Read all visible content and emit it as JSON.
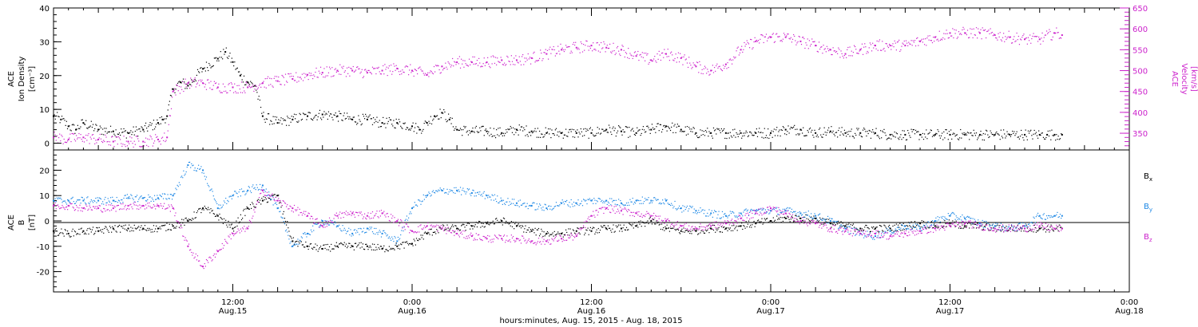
{
  "figure": {
    "xlabel": "hours:minutes, Aug. 15, 2015 - Aug. 18, 2015",
    "x_unit": "hours since 2015-08-15 00:00",
    "xlim": [
      0,
      72
    ],
    "xticks": [
      {
        "x": 12,
        "line1": "12:00",
        "line2": "Aug.15"
      },
      {
        "x": 24,
        "line1": "0:00",
        "line2": "Aug.16"
      },
      {
        "x": 36,
        "line1": "12:00",
        "line2": "Aug.16"
      },
      {
        "x": 48,
        "line1": "0:00",
        "line2": "Aug.17"
      },
      {
        "x": 60,
        "line1": "12:00",
        "line2": "Aug.17"
      },
      {
        "x": 72,
        "line1": "0:00",
        "line2": "Aug.18"
      }
    ]
  },
  "chart_data": [
    {
      "type": "scatter",
      "panel": "plasma",
      "left_axis": {
        "label_lines": [
          "ACE",
          "Ion Density",
          "[cm⁻³]"
        ],
        "ylim": [
          -2,
          40
        ],
        "ticks": [
          0,
          10,
          20,
          30,
          40
        ],
        "color": "#000000"
      },
      "right_axis": {
        "label_lines": [
          "ACE",
          "Velocity",
          "[km/s]"
        ],
        "ylim": [
          310,
          650
        ],
        "ticks": [
          350,
          400,
          450,
          500,
          550,
          600,
          650
        ],
        "color": "#cc22cc"
      },
      "series": [
        {
          "name": "Ion Density",
          "axis": "left",
          "color": "#000000",
          "x": [
            0,
            0.5,
            1,
            1.5,
            2,
            3,
            4,
            5,
            6,
            7,
            7.3,
            7.6,
            8,
            8.5,
            9,
            10,
            11,
            11.5,
            12,
            12.5,
            13,
            13.5,
            14,
            15,
            16,
            17,
            18,
            19,
            20,
            21,
            22,
            23,
            24,
            24.5,
            25,
            25.5,
            26,
            26.5,
            27,
            28,
            29,
            30,
            31,
            32,
            33,
            34,
            35,
            36,
            37,
            38,
            39,
            40,
            41,
            42,
            43,
            44,
            45,
            46,
            47,
            48,
            49,
            50,
            51,
            52,
            53,
            54,
            55,
            56,
            57,
            58,
            59,
            60,
            61,
            62,
            63,
            64,
            65,
            66,
            66.5,
            67,
            67.5
          ],
          "y": [
            8,
            7,
            5,
            4,
            6,
            4,
            3.5,
            3,
            4,
            6,
            7,
            8,
            16,
            18,
            17,
            22,
            25,
            27,
            24,
            20,
            18,
            17,
            8,
            6,
            7,
            8,
            8.5,
            8,
            7,
            7,
            6,
            6,
            5,
            4,
            6,
            8,
            9,
            7,
            4,
            3.5,
            3.5,
            3,
            4,
            3.5,
            3,
            3,
            3,
            3,
            4,
            3.5,
            3,
            4,
            5,
            4,
            3,
            3,
            3,
            3,
            3,
            3,
            4,
            4,
            3,
            3.5,
            3,
            3,
            3,
            2.5,
            2.5,
            2.5,
            2.5,
            2.5,
            2.5,
            2.5,
            2.5,
            2.5,
            2.5,
            2.5,
            2.5,
            2.5,
            2.5
          ]
        },
        {
          "name": "Velocity",
          "axis": "right",
          "color": "#cc22cc",
          "x": [
            0,
            1,
            2,
            3,
            4,
            5,
            6,
            7,
            7.6,
            8,
            9,
            10,
            11,
            12,
            13,
            14,
            15,
            16,
            17,
            18,
            19,
            20,
            21,
            22,
            23,
            24,
            25,
            26,
            27,
            28,
            29,
            30,
            31,
            32,
            33,
            34,
            35,
            36,
            37,
            38,
            39,
            40,
            41,
            42,
            43,
            44,
            45,
            46,
            47,
            48,
            49,
            50,
            51,
            52,
            53,
            54,
            55,
            56,
            57,
            58,
            59,
            60,
            61,
            62,
            63,
            64,
            65,
            66,
            67,
            67.5
          ],
          "y": [
            340,
            335,
            340,
            335,
            330,
            330,
            330,
            335,
            340,
            450,
            470,
            470,
            460,
            460,
            460,
            470,
            475,
            480,
            490,
            495,
            500,
            500,
            495,
            500,
            505,
            500,
            490,
            510,
            520,
            520,
            520,
            525,
            525,
            530,
            540,
            550,
            555,
            560,
            555,
            550,
            535,
            525,
            540,
            530,
            510,
            500,
            515,
            550,
            570,
            580,
            580,
            570,
            560,
            550,
            540,
            550,
            560,
            560,
            560,
            570,
            580,
            590,
            590,
            590,
            585,
            580,
            575,
            575,
            590,
            585
          ]
        }
      ]
    },
    {
      "type": "scatter",
      "panel": "magnetic",
      "left_axis": {
        "label_lines": [
          "ACE",
          "B",
          "[nT]"
        ],
        "ylim": [
          -28,
          28
        ],
        "ticks": [
          -20,
          -10,
          0,
          10,
          20
        ],
        "color": "#000000"
      },
      "zero_line": true,
      "legend_placement": "right",
      "legend": [
        {
          "base": "B",
          "sub": "x",
          "color": "#000000"
        },
        {
          "base": "B",
          "sub": "y",
          "color": "#1e88e5"
        },
        {
          "base": "B",
          "sub": "z",
          "color": "#cc22cc"
        }
      ],
      "series": [
        {
          "name": "Bx",
          "color": "#000000",
          "x": [
            0,
            1,
            2,
            3,
            4,
            5,
            6,
            7,
            8,
            9,
            10,
            11,
            12,
            13,
            14,
            15,
            16,
            17,
            18,
            19,
            20,
            21,
            22,
            23,
            24,
            25,
            26,
            27,
            28,
            29,
            30,
            31,
            32,
            33,
            34,
            35,
            36,
            37,
            38,
            39,
            40,
            41,
            42,
            43,
            44,
            45,
            46,
            47,
            48,
            49,
            50,
            51,
            52,
            53,
            54,
            55,
            56,
            57,
            58,
            59,
            60,
            61,
            62,
            63,
            64,
            65,
            66,
            67,
            67.5
          ],
          "y": [
            -4,
            -5,
            -4,
            -4,
            -3,
            -3,
            -3,
            -3,
            -2,
            0,
            5,
            2,
            -3,
            5,
            8,
            10,
            -8,
            -10,
            -11,
            -10,
            -10,
            -10,
            -11,
            -10,
            -9,
            -5,
            -3,
            -3,
            -2,
            -1,
            0,
            -2,
            -4,
            -5,
            -5,
            -4,
            -4,
            -3,
            -3,
            -2,
            0,
            -3,
            -4,
            -4,
            -3,
            -3,
            -2,
            -1,
            0,
            1,
            1,
            1,
            -1,
            -2,
            -3,
            -3,
            -3,
            -2,
            -1,
            -2,
            -1,
            -2,
            -2,
            -3,
            -3,
            -3,
            -3,
            -3,
            -3
          ]
        },
        {
          "name": "By",
          "color": "#1e88e5",
          "x": [
            0,
            1,
            2,
            3,
            4,
            5,
            6,
            7,
            8,
            9,
            10,
            11,
            12,
            13,
            14,
            15,
            16,
            17,
            18,
            19,
            20,
            21,
            22,
            23,
            24,
            25,
            26,
            27,
            28,
            29,
            30,
            31,
            32,
            33,
            34,
            35,
            36,
            37,
            38,
            39,
            40,
            41,
            42,
            43,
            44,
            45,
            46,
            47,
            48,
            49,
            50,
            51,
            52,
            53,
            54,
            55,
            56,
            57,
            58,
            59,
            60,
            61,
            62,
            63,
            64,
            65,
            66,
            67,
            67.5
          ],
          "y": [
            8,
            8,
            8,
            8,
            8,
            9,
            9,
            9,
            10,
            22,
            20,
            5,
            10,
            12,
            14,
            5,
            -10,
            -5,
            0,
            -2,
            -5,
            -3,
            -5,
            -8,
            5,
            10,
            12,
            12,
            11,
            10,
            8,
            7,
            6,
            5,
            7,
            7,
            8,
            8,
            7,
            8,
            8,
            8,
            5,
            4,
            3,
            2,
            3,
            4,
            4,
            4,
            3,
            2,
            0,
            -3,
            -5,
            -6,
            -4,
            -2,
            -3,
            0,
            2,
            1,
            -1,
            -2,
            -3,
            -2,
            2,
            2,
            2
          ]
        },
        {
          "name": "Bz",
          "color": "#cc22cc",
          "x": [
            0,
            1,
            2,
            3,
            4,
            5,
            6,
            7,
            8,
            9,
            10,
            11,
            12,
            13,
            14,
            15,
            16,
            17,
            18,
            19,
            20,
            21,
            22,
            23,
            24,
            25,
            26,
            27,
            28,
            29,
            30,
            31,
            32,
            33,
            34,
            35,
            36,
            37,
            38,
            39,
            40,
            41,
            42,
            43,
            44,
            45,
            46,
            47,
            48,
            49,
            50,
            51,
            52,
            53,
            54,
            55,
            56,
            57,
            58,
            59,
            60,
            61,
            62,
            63,
            64,
            65,
            66,
            67,
            67.5
          ],
          "y": [
            6,
            6,
            5,
            5,
            5,
            6,
            6,
            6,
            5,
            -10,
            -18,
            -12,
            -5,
            -3,
            12,
            8,
            5,
            2,
            -2,
            2,
            3,
            2,
            3,
            0,
            -4,
            -2,
            -3,
            -5,
            -6,
            -7,
            -7,
            -7,
            -8,
            -8,
            -7,
            -6,
            2,
            5,
            4,
            3,
            2,
            0,
            -2,
            -3,
            -2,
            -1,
            1,
            3,
            5,
            3,
            0,
            -1,
            -3,
            -4,
            -5,
            -5,
            -6,
            -5,
            -4,
            -3,
            -2,
            -1,
            -2,
            -3,
            -3,
            -3,
            -2,
            -3,
            -3
          ]
        }
      ]
    }
  ]
}
